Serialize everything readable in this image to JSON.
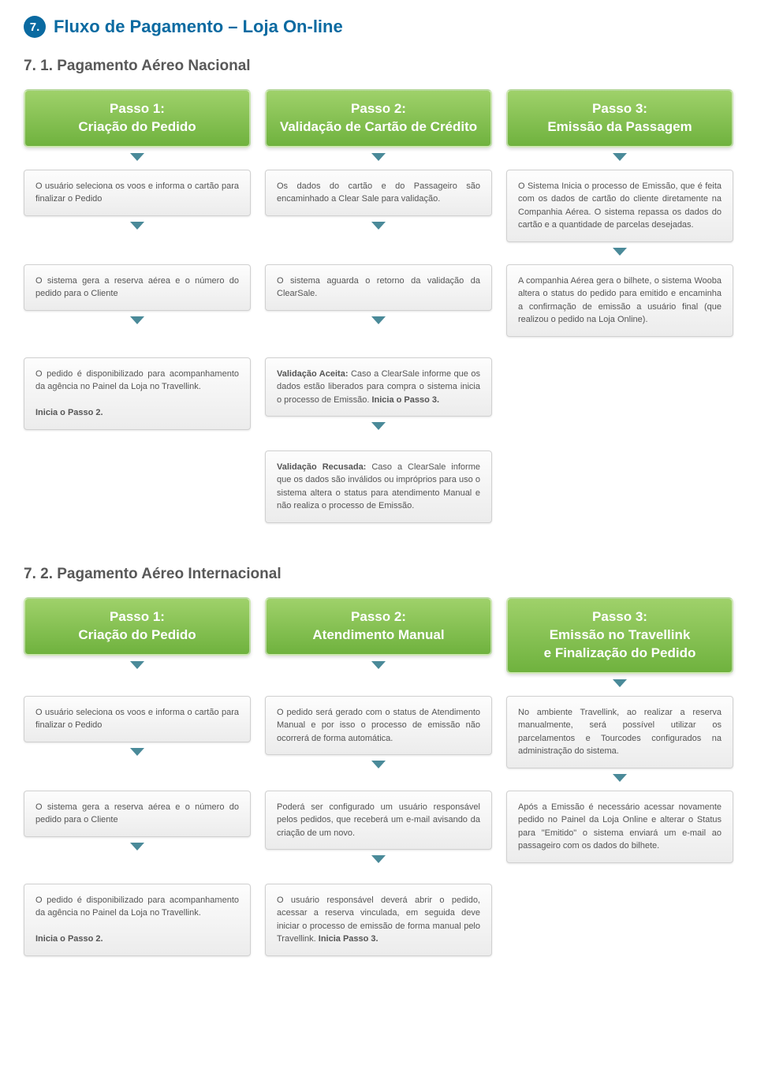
{
  "colors": {
    "badge_bg": "#0a6aa1",
    "title_text": "#0a6aa1",
    "subtitle_text": "#585858",
    "step_bg_top": "#9fd16a",
    "step_bg_bottom": "#6fb23e",
    "arrow_color": "#4a8a99",
    "box_text": "#555555"
  },
  "header": {
    "badge": "7.",
    "title": "Fluxo de Pagamento – Loja On-line"
  },
  "section1": {
    "title": "7. 1.  Pagamento Aéreo Nacional",
    "steps": [
      {
        "line1": "Passo 1:",
        "line2": "Criação do Pedido"
      },
      {
        "line1": "Passo 2:",
        "line2": "Validação de Cartão de Crédito"
      },
      {
        "line1": "Passo 3:",
        "line2": "Emissão da Passagem"
      }
    ],
    "col1": [
      "O usuário seleciona os voos e informa o cartão para finalizar o Pedido",
      "O sistema gera a reserva aérea e o número do pedido para o Cliente",
      "O pedido é disponibilizado para acompanhamento da agência no Painel da Loja no Travellink.\n\nInicia o Passo 2."
    ],
    "col2": [
      "Os dados do cartão e do Passageiro são encaminhado a Clear Sale para validação.",
      "O sistema aguarda o retorno da validação da ClearSale.",
      "Validação Aceita: Caso a ClearSale informe que os dados estão liberados para compra o sistema inicia o processo de Emissão. Inicia o Passo 3.",
      "Validação Recusada: Caso a ClearSale informe que os dados são inválidos ou impróprios para uso o sistema altera o status para atendimento Manual e não realiza o processo de Emissão."
    ],
    "col3": [
      "O Sistema Inicia o processo de Emissão, que é feita com os dados de cartão do cliente diretamente na Companhia Aérea. O sistema repassa os dados do cartão e a quantidade de parcelas desejadas.",
      "A companhia Aérea gera o bilhete, o sistema Wooba altera o status do pedido para emitido e encaminha a confirmação de emissão a usuário final (que realizou o pedido na Loja Online)."
    ]
  },
  "section2": {
    "title": "7. 2.  Pagamento Aéreo Internacional",
    "steps": [
      {
        "line1": "Passo 1:",
        "line2": "Criação do Pedido"
      },
      {
        "line1": "Passo 2:",
        "line2": "Atendimento Manual"
      },
      {
        "line1": "Passo 3:",
        "line2": "Emissão no Travellink\ne Finalização do Pedido"
      }
    ],
    "col1": [
      "O usuário seleciona os voos e informa o cartão para finalizar o Pedido",
      "O sistema gera a reserva aérea e o número do pedido para o Cliente",
      "O pedido é disponibilizado para acompanhamento da agência no Painel da Loja no Travellink.\n\nInicia o Passo 2."
    ],
    "col2": [
      "O pedido será gerado com o status de Atendimento Manual e por isso o processo de emissão não ocorrerá de forma automática.",
      "Poderá ser configurado um usuário responsável pelos pedidos, que receberá um e-mail avisando da criação de um novo.",
      "O usuário responsável deverá abrir o pedido, acessar a reserva vinculada, em seguida deve iniciar o processo de emissão de forma manual pelo Travellink. Inicia Passo 3."
    ],
    "col3": [
      "No ambiente Travellink, ao realizar a reserva manualmente, será possível utilizar os parcelamentos e Tourcodes configurados na administração do sistema.",
      "Após a Emissão é necessário acessar novamente pedido no Painel da Loja Online e alterar o Status para \"Emitido\" o sistema enviará um e-mail ao passageiro com os dados do bilhete."
    ]
  }
}
